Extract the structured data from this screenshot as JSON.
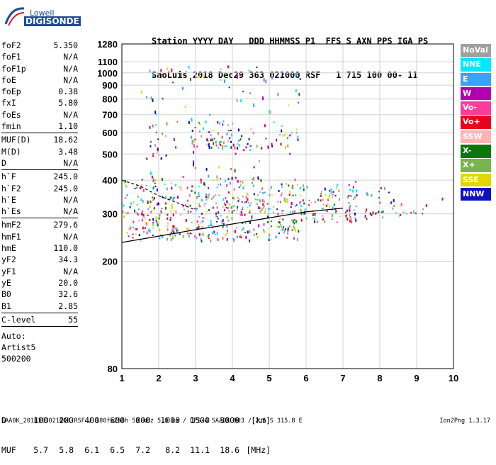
{
  "logo": {
    "line1": "Lowell",
    "line2": "DIGISONDE"
  },
  "header": {
    "line1": [
      "Station",
      "YYYY DAY",
      "DDD HHMMSS P1",
      "FFS S AXN PPS IGA PS"
    ],
    "line2": [
      "SaoLuis",
      "2018 Dec29",
      "363 021000 RSF",
      "1 715 100 00- 11"
    ]
  },
  "params": [
    [
      {
        "label": "foF2",
        "value": "5.350"
      },
      {
        "label": "foF1",
        "value": "N/A"
      },
      {
        "label": "foF1p",
        "value": "N/A"
      },
      {
        "label": "foE",
        "value": "N/A"
      },
      {
        "label": "foEp",
        "value": "0.38"
      },
      {
        "label": "fxI",
        "value": "5.80"
      },
      {
        "label": "foEs",
        "value": "N/A"
      },
      {
        "label": "fmin",
        "value": "1.10"
      }
    ],
    [
      {
        "label": "MUF(D)",
        "value": "18.62"
      },
      {
        "label": "M(D)",
        "value": "3.48"
      },
      {
        "label": "D",
        "value": "N/A"
      }
    ],
    [
      {
        "label": "h`F",
        "value": "245.0"
      },
      {
        "label": "h`F2",
        "value": "245.0"
      },
      {
        "label": "h`E",
        "value": "N/A"
      },
      {
        "label": "h`Es",
        "value": "N/A"
      }
    ],
    [
      {
        "label": "hmF2",
        "value": "279.6"
      },
      {
        "label": "hmF1",
        "value": "N/A"
      },
      {
        "label": "hmE",
        "value": "110.0"
      },
      {
        "label": "yF2",
        "value": "34.3"
      },
      {
        "label": "yF1",
        "value": "N/A"
      },
      {
        "label": "yE",
        "value": "20.0"
      },
      {
        "label": "B0",
        "value": "32.6"
      },
      {
        "label": "B1",
        "value": "2.85"
      }
    ],
    [
      {
        "label": "C-level",
        "value": "55"
      }
    ]
  ],
  "auto": [
    "Auto:",
    "Artist5",
    "500200"
  ],
  "legend": [
    {
      "label": "NoVal",
      "color": "#a0a0a0"
    },
    {
      "label": "NNE",
      "color": "#00e8ff"
    },
    {
      "label": "E",
      "color": "#3ca0ff"
    },
    {
      "label": "W",
      "color": "#b000b0"
    },
    {
      "label": "Vo-",
      "color": "#ff3c9c"
    },
    {
      "label": "Vo+",
      "color": "#e8001c"
    },
    {
      "label": "SSW",
      "color": "#ffb4b4"
    },
    {
      "label": "X-",
      "color": "#0c780c"
    },
    {
      "label": "X+",
      "color": "#78b450"
    },
    {
      "label": "SSE",
      "color": "#e0d800"
    },
    {
      "label": "NNW",
      "color": "#1010c0"
    }
  ],
  "chart_data": {
    "type": "scatter",
    "title": "",
    "xlabel": "",
    "ylabel": "",
    "xlim": [
      1,
      10
    ],
    "ylim": [
      80,
      1280
    ],
    "y_scale": "log",
    "x_ticks": [
      1,
      2,
      3,
      4,
      5,
      6,
      7,
      8,
      9,
      10
    ],
    "y_ticks": [
      80,
      200,
      300,
      400,
      500,
      600,
      700,
      800,
      900,
      1000,
      1100,
      1280
    ],
    "grid": true,
    "clusters": [
      {
        "x_range": [
          1.0,
          5.8
        ],
        "y_range": [
          240,
          420
        ],
        "density": "high"
      },
      {
        "x_range": [
          1.6,
          2.2
        ],
        "y_range": [
          470,
          610
        ],
        "density": "medium"
      },
      {
        "x_range": [
          2.8,
          4.0
        ],
        "y_range": [
          530,
          680
        ],
        "density": "high"
      },
      {
        "x_range": [
          4.0,
          5.8
        ],
        "y_range": [
          520,
          650
        ],
        "density": "medium"
      },
      {
        "x_range": [
          5.8,
          7.4
        ],
        "y_range": [
          280,
          400
        ],
        "density": "high"
      },
      {
        "x_range": [
          7.4,
          8.6
        ],
        "y_range": [
          290,
          380
        ],
        "density": "medium"
      },
      {
        "x_range": [
          8.6,
          9.8
        ],
        "y_range": [
          300,
          350
        ],
        "density": "low"
      }
    ],
    "profile_solid": [
      [
        1.0,
        235
      ],
      [
        2.0,
        248
      ],
      [
        3.0,
        262
      ],
      [
        4.0,
        275
      ],
      [
        5.0,
        290
      ],
      [
        6.0,
        305
      ],
      [
        7.0,
        315
      ]
    ],
    "trace_dashed": [
      [
        1.0,
        400
      ],
      [
        1.5,
        380
      ],
      [
        2.0,
        350
      ],
      [
        2.5,
        330
      ],
      [
        3.0,
        310
      ]
    ]
  },
  "bottom": {
    "row1": [
      "D",
      "100",
      "200",
      "400",
      "600",
      "800",
      "1000",
      "1500",
      "3000",
      "[km]"
    ],
    "row2": [
      "MUF",
      "5.7",
      "5.8",
      "6.1",
      "6.5",
      "7.2",
      "8.2",
      "11.1",
      "18.6",
      "[MHz]"
    ]
  },
  "footer": "SAA0K_2018363021000.RSF / 180fx256h 50 kHz 5.0 km / DPS-4 SAA0K 903 / 2.6 S 315.8 E",
  "footer_right": "Ion2Png 1.3.17"
}
